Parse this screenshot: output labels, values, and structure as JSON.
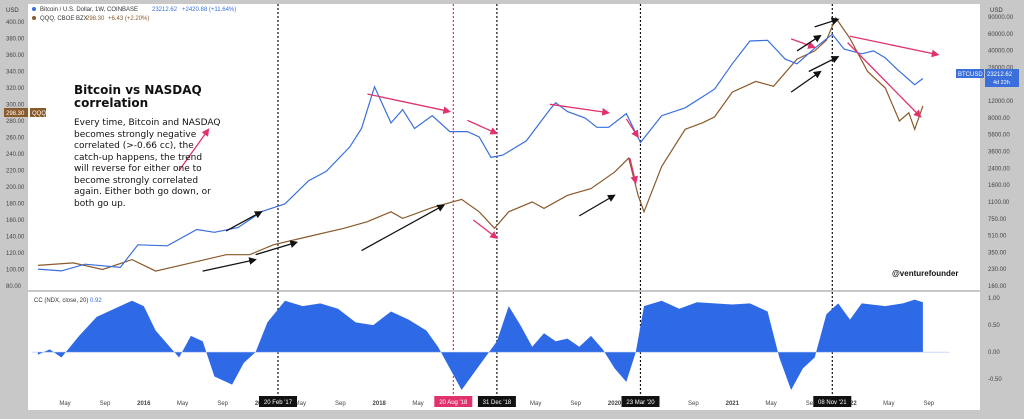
{
  "colors": {
    "btc": "#3a6fdc",
    "qqq": "#8a5a2b",
    "cc_fill": "#2e6ae6",
    "pink": "#e0336e",
    "arrow_black": "#111111",
    "vline_black": "#111111",
    "vline_pink": "#e0336e",
    "panel_bg": "#ffffff",
    "outer_bg": "#c8c8c8"
  },
  "legend": {
    "btc_line": "Bitcoin / U.S. Dollar, 1W, COINBASE",
    "btc_value": "23212.62",
    "btc_change": "+2420.88 (+11.64%)",
    "qqq_line": "QQQ, CBOE BZX",
    "qqq_value": "298.30",
    "qqq_change": "+6.43 (+2.20%)",
    "cc_line": "CC (NDX, close, 20)",
    "cc_value": "0.92"
  },
  "annotation": {
    "title_line1": "Bitcoin vs NASDAQ",
    "title_line2": "correlation",
    "body_lines": [
      "Every time, Bitcoin and NASDAQ",
      "becomes strongly negative",
      "correlated (>-0.66 cc), the",
      "catch-up happens, the trend",
      "will reverse for either one to",
      "become strongly correlated",
      "again. Either both go down, or",
      "both go up."
    ],
    "watermark": "@venturefounder"
  },
  "price_badges": {
    "qqq_value": "298.30",
    "qqq_label": "QQQ",
    "btc_label": "BTCUSD",
    "btc_value": "23212.62",
    "btc_countdown": "4d 22h"
  },
  "left_axis": {
    "unit": "USD",
    "ticks": [
      400,
      380,
      360,
      340,
      320,
      300,
      280,
      260,
      240,
      220,
      200,
      180,
      160,
      140,
      120,
      100,
      80
    ],
    "labels": [
      "400.00",
      "380.00",
      "360.00",
      "340.00",
      "320.00",
      "300.00",
      "280.00",
      "260.00",
      "240.00",
      "220.00",
      "200.00",
      "180.00",
      "160.00",
      "140.00",
      "120.00",
      "100.00",
      "80.00"
    ]
  },
  "right_axis": {
    "unit": "USD",
    "labels": [
      "90000.00",
      "60000.00",
      "40000.00",
      "28000.00",
      "18000.00",
      "12000.00",
      "8000.00",
      "5600.00",
      "3600.00",
      "2400.00",
      "1600.00",
      "1100.00",
      "750.00",
      "510.00",
      "350.00",
      "230.00",
      "160.00"
    ]
  },
  "cc_axis": {
    "ticks": [
      1.0,
      0.5,
      0.0,
      -0.5
    ],
    "labels": [
      "1.00",
      "0.50",
      "0.00",
      "-0.50"
    ]
  },
  "x_axis": {
    "labels": [
      "May",
      "Sep",
      "2016",
      "May",
      "Sep",
      "2017",
      "May",
      "Sep",
      "2018",
      "May",
      "Sep",
      "2019",
      "May",
      "Sep",
      "2020",
      "May",
      "Sep",
      "2021",
      "May",
      "Sep",
      "2022",
      "May",
      "Sep"
    ],
    "marks": [
      2015.33,
      2015.67,
      2016.0,
      2016.33,
      2016.67,
      2017.0,
      2017.33,
      2017.67,
      2018.0,
      2018.33,
      2018.67,
      2019.0,
      2019.33,
      2019.67,
      2020.0,
      2020.33,
      2020.67,
      2021.0,
      2021.33,
      2021.67,
      2022.0,
      2022.33,
      2022.67
    ],
    "range": [
      2015.05,
      2022.85
    ]
  },
  "date_markers": [
    {
      "label": "20 Feb '17",
      "t": 2017.14,
      "style": "black"
    },
    {
      "label": "20 Aug '18",
      "t": 2018.63,
      "style": "pink"
    },
    {
      "label": "31 Dec '18",
      "t": 2019.0,
      "style": "black"
    },
    {
      "label": "23 Mar '20",
      "t": 2020.22,
      "style": "black"
    },
    {
      "label": "08 Nov '21",
      "t": 2021.85,
      "style": "black"
    }
  ],
  "chart_data": {
    "type": "line",
    "title": "Bitcoin vs NASDAQ correlation",
    "series": [
      {
        "name": "Bitcoin / U.S. Dollar",
        "scale": "log (right axis, USD)",
        "points": [
          [
            2015.1,
            240
          ],
          [
            2015.3,
            230
          ],
          [
            2015.5,
            270
          ],
          [
            2015.8,
            250
          ],
          [
            2015.95,
            430
          ],
          [
            2016.2,
            420
          ],
          [
            2016.45,
            620
          ],
          [
            2016.6,
            580
          ],
          [
            2016.8,
            650
          ],
          [
            2017.0,
            950
          ],
          [
            2017.2,
            1150
          ],
          [
            2017.4,
            2000
          ],
          [
            2017.55,
            2500
          ],
          [
            2017.75,
            4500
          ],
          [
            2017.85,
            7000
          ],
          [
            2017.96,
            19000
          ],
          [
            2018.1,
            8000
          ],
          [
            2018.2,
            11000
          ],
          [
            2018.3,
            7000
          ],
          [
            2018.45,
            9500
          ],
          [
            2018.6,
            6500
          ],
          [
            2018.75,
            6500
          ],
          [
            2018.85,
            5700
          ],
          [
            2018.95,
            3500
          ],
          [
            2019.05,
            3700
          ],
          [
            2019.25,
            5200
          ],
          [
            2019.45,
            11000
          ],
          [
            2019.5,
            13000
          ],
          [
            2019.6,
            10500
          ],
          [
            2019.75,
            9000
          ],
          [
            2019.85,
            7200
          ],
          [
            2019.95,
            7200
          ],
          [
            2020.1,
            10000
          ],
          [
            2020.22,
            5000
          ],
          [
            2020.4,
            9500
          ],
          [
            2020.6,
            11500
          ],
          [
            2020.85,
            18000
          ],
          [
            2021.0,
            33000
          ],
          [
            2021.15,
            57000
          ],
          [
            2021.3,
            58000
          ],
          [
            2021.45,
            37000
          ],
          [
            2021.55,
            33000
          ],
          [
            2021.7,
            48000
          ],
          [
            2021.85,
            67000
          ],
          [
            2021.95,
            47000
          ],
          [
            2022.1,
            42000
          ],
          [
            2022.2,
            45000
          ],
          [
            2022.3,
            38000
          ],
          [
            2022.4,
            29000
          ],
          [
            2022.55,
            20000
          ],
          [
            2022.62,
            23212
          ]
        ]
      },
      {
        "name": "QQQ",
        "scale": "linear (left axis, USD)",
        "points": [
          [
            2015.1,
            105
          ],
          [
            2015.4,
            108
          ],
          [
            2015.65,
            100
          ],
          [
            2015.9,
            112
          ],
          [
            2016.1,
            98
          ],
          [
            2016.4,
            108
          ],
          [
            2016.7,
            118
          ],
          [
            2016.9,
            118
          ],
          [
            2017.1,
            130
          ],
          [
            2017.4,
            140
          ],
          [
            2017.7,
            150
          ],
          [
            2017.9,
            158
          ],
          [
            2018.1,
            170
          ],
          [
            2018.2,
            162
          ],
          [
            2018.45,
            175
          ],
          [
            2018.7,
            185
          ],
          [
            2018.85,
            170
          ],
          [
            2018.98,
            150
          ],
          [
            2019.1,
            170
          ],
          [
            2019.3,
            182
          ],
          [
            2019.4,
            174
          ],
          [
            2019.6,
            190
          ],
          [
            2019.8,
            198
          ],
          [
            2020.0,
            218
          ],
          [
            2020.12,
            235
          ],
          [
            2020.2,
            190
          ],
          [
            2020.25,
            170
          ],
          [
            2020.4,
            225
          ],
          [
            2020.6,
            270
          ],
          [
            2020.75,
            278
          ],
          [
            2020.85,
            285
          ],
          [
            2021.0,
            315
          ],
          [
            2021.2,
            328
          ],
          [
            2021.35,
            322
          ],
          [
            2021.55,
            355
          ],
          [
            2021.7,
            365
          ],
          [
            2021.8,
            378
          ],
          [
            2021.88,
            405
          ],
          [
            2022.0,
            380
          ],
          [
            2022.15,
            340
          ],
          [
            2022.3,
            320
          ],
          [
            2022.42,
            280
          ],
          [
            2022.5,
            290
          ],
          [
            2022.55,
            270
          ],
          [
            2022.62,
            298.3
          ]
        ]
      },
      {
        "name": "CC (NDX, close, 20)",
        "scale": "linear (-1 to 1)",
        "points": [
          [
            2015.1,
            -0.05
          ],
          [
            2015.2,
            0.05
          ],
          [
            2015.3,
            -0.1
          ],
          [
            2015.45,
            0.3
          ],
          [
            2015.6,
            0.65
          ],
          [
            2015.75,
            0.8
          ],
          [
            2015.9,
            0.95
          ],
          [
            2016.0,
            0.85
          ],
          [
            2016.1,
            0.4
          ],
          [
            2016.2,
            0.15
          ],
          [
            2016.3,
            -0.1
          ],
          [
            2016.4,
            0.3
          ],
          [
            2016.5,
            0.2
          ],
          [
            2016.6,
            -0.45
          ],
          [
            2016.75,
            -0.6
          ],
          [
            2016.85,
            -0.2
          ],
          [
            2016.95,
            0.0
          ],
          [
            2017.05,
            0.55
          ],
          [
            2017.2,
            0.95
          ],
          [
            2017.35,
            0.85
          ],
          [
            2017.5,
            0.9
          ],
          [
            2017.65,
            0.8
          ],
          [
            2017.8,
            0.55
          ],
          [
            2017.95,
            0.5
          ],
          [
            2018.1,
            0.75
          ],
          [
            2018.25,
            0.6
          ],
          [
            2018.4,
            0.4
          ],
          [
            2018.5,
            0.1
          ],
          [
            2018.6,
            -0.3
          ],
          [
            2018.7,
            -0.7
          ],
          [
            2018.8,
            -0.4
          ],
          [
            2018.9,
            -0.1
          ],
          [
            2019.0,
            0.2
          ],
          [
            2019.1,
            0.85
          ],
          [
            2019.2,
            0.5
          ],
          [
            2019.3,
            0.1
          ],
          [
            2019.4,
            0.35
          ],
          [
            2019.5,
            0.2
          ],
          [
            2019.6,
            0.25
          ],
          [
            2019.7,
            0.1
          ],
          [
            2019.8,
            0.3
          ],
          [
            2019.9,
            0.05
          ],
          [
            2020.0,
            -0.3
          ],
          [
            2020.1,
            -0.55
          ],
          [
            2020.18,
            0.0
          ],
          [
            2020.25,
            0.85
          ],
          [
            2020.4,
            0.95
          ],
          [
            2020.55,
            0.8
          ],
          [
            2020.7,
            0.92
          ],
          [
            2020.85,
            0.9
          ],
          [
            2021.0,
            0.88
          ],
          [
            2021.15,
            0.9
          ],
          [
            2021.3,
            0.75
          ],
          [
            2021.4,
            -0.1
          ],
          [
            2021.5,
            -0.7
          ],
          [
            2021.6,
            -0.3
          ],
          [
            2021.7,
            -0.1
          ],
          [
            2021.8,
            0.7
          ],
          [
            2021.9,
            0.9
          ],
          [
            2022.0,
            0.6
          ],
          [
            2022.1,
            0.9
          ],
          [
            2022.3,
            0.85
          ],
          [
            2022.45,
            0.9
          ],
          [
            2022.55,
            0.97
          ],
          [
            2022.62,
            0.92
          ]
        ]
      }
    ],
    "axes": {
      "left": {
        "label": "USD",
        "ylim": [
          80,
          400
        ],
        "scale": "linear"
      },
      "right": {
        "label": "USD",
        "ylim": [
          160,
          90000
        ],
        "scale": "log"
      },
      "indicator": {
        "ylim": [
          -0.7,
          1.0
        ]
      }
    },
    "grid": false,
    "legend": "top-left"
  },
  "arrows": [
    {
      "c": "pink",
      "from": [
        2016.3,
        220
      ],
      "to": [
        2016.55,
        270
      ]
    },
    {
      "c": "black",
      "from": [
        2016.7,
        600
      ],
      "to": [
        2017.0,
        950
      ]
    },
    {
      "c": "black",
      "from": [
        2016.5,
        98
      ],
      "to": [
        2016.95,
        112
      ]
    },
    {
      "c": "black",
      "from": [
        2016.95,
        118
      ],
      "to": [
        2017.3,
        133
      ]
    },
    {
      "c": "pink",
      "from": [
        2017.9,
        16000
      ],
      "to": [
        2018.6,
        10500
      ]
    },
    {
      "c": "black",
      "from": [
        2017.85,
        123
      ],
      "to": [
        2018.55,
        178
      ]
    },
    {
      "c": "pink",
      "from": [
        2018.75,
        8500
      ],
      "to": [
        2019.0,
        6200
      ]
    },
    {
      "c": "pink",
      "from": [
        2018.8,
        160
      ],
      "to": [
        2019.0,
        138
      ]
    },
    {
      "c": "pink",
      "from": [
        2019.45,
        12500
      ],
      "to": [
        2019.95,
        10200
      ]
    },
    {
      "c": "pink",
      "from": [
        2020.1,
        8800
      ],
      "to": [
        2020.2,
        5700
      ]
    },
    {
      "c": "black",
      "from": [
        2019.7,
        165
      ],
      "to": [
        2020.0,
        190
      ]
    },
    {
      "c": "pink",
      "from": [
        2020.13,
        235
      ],
      "to": [
        2020.18,
        205
      ]
    },
    {
      "c": "pink",
      "from": [
        2021.5,
        60000
      ],
      "to": [
        2021.7,
        49000
      ]
    },
    {
      "c": "black",
      "from": [
        2021.55,
        45000
      ],
      "to": [
        2021.75,
        65000
      ]
    },
    {
      "c": "black",
      "from": [
        2021.7,
        80000
      ],
      "to": [
        2021.9,
        96000
      ]
    },
    {
      "c": "black",
      "from": [
        2021.5,
        315
      ],
      "to": [
        2021.75,
        340
      ]
    },
    {
      "c": "black",
      "from": [
        2021.65,
        340
      ],
      "to": [
        2021.9,
        358
      ]
    },
    {
      "c": "pink",
      "from": [
        2022.0,
        64000
      ],
      "to": [
        2022.75,
        41000
      ]
    },
    {
      "c": "pink",
      "from": [
        2021.98,
        375
      ],
      "to": [
        2022.6,
        285
      ]
    }
  ]
}
